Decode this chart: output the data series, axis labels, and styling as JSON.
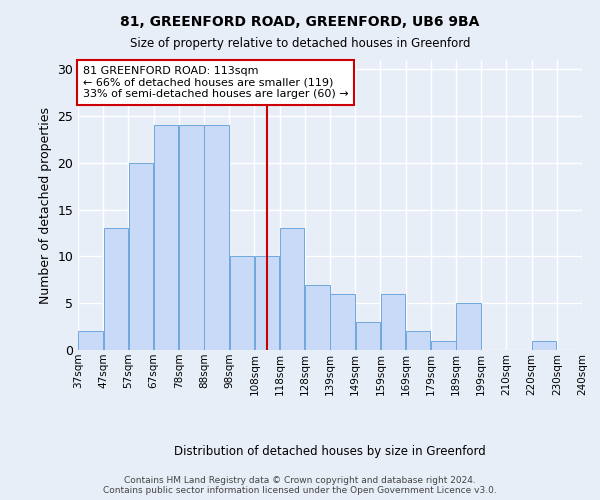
{
  "title1": "81, GREENFORD ROAD, GREENFORD, UB6 9BA",
  "title2": "Size of property relative to detached houses in Greenford",
  "xlabel": "Distribution of detached houses by size in Greenford",
  "ylabel": "Number of detached properties",
  "bar_values": [
    2,
    13,
    20,
    24,
    24,
    24,
    10,
    10,
    13,
    7,
    6,
    3,
    6,
    2,
    1,
    5,
    0,
    0,
    1,
    0
  ],
  "bar_labels": [
    "37sqm",
    "47sqm",
    "57sqm",
    "67sqm",
    "78sqm",
    "88sqm",
    "98sqm",
    "108sqm",
    "118sqm",
    "128sqm",
    "139sqm",
    "149sqm",
    "159sqm",
    "169sqm",
    "179sqm",
    "189sqm",
    "199sqm",
    "210sqm",
    "220sqm",
    "230sqm",
    "240sqm"
  ],
  "bar_color": "#c9daf8",
  "bar_edgecolor": "#6fa8dc",
  "vline_color": "#cc0000",
  "annotation_text": "81 GREENFORD ROAD: 113sqm\n← 66% of detached houses are smaller (119)\n33% of semi-detached houses are larger (60) →",
  "annotation_box_color": "#cc0000",
  "ylim": [
    0,
    31
  ],
  "yticks": [
    0,
    5,
    10,
    15,
    20,
    25,
    30
  ],
  "footer_text": "Contains HM Land Registry data © Crown copyright and database right 2024.\nContains public sector information licensed under the Open Government Licence v3.0.",
  "bg_color": "#e8eef8",
  "plot_bg_color": "#e8eef8",
  "grid_color": "#ffffff"
}
